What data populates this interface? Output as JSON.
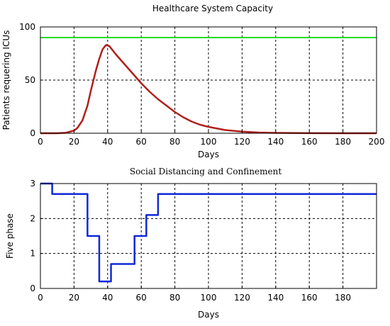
{
  "chart_data": [
    {
      "type": "line",
      "title": "Healthcare System Capacity",
      "xlabel": "Days",
      "ylabel": "Patients requering ICUs",
      "xlim": [
        0,
        200
      ],
      "ylim": [
        0,
        100
      ],
      "xticks": [
        0,
        20,
        40,
        60,
        80,
        100,
        120,
        140,
        160,
        180,
        200
      ],
      "yticks": [
        0,
        50,
        100
      ],
      "grid": true,
      "series": [
        {
          "color": "#22dd22",
          "kind": "hline",
          "y": 90
        },
        {
          "color": "#b0201a",
          "kind": "curve",
          "x": [
            0,
            10,
            15,
            20,
            22,
            25,
            28,
            30,
            33,
            35,
            37,
            39,
            41,
            43,
            45,
            50,
            55,
            60,
            65,
            70,
            75,
            80,
            85,
            90,
            95,
            100,
            110,
            120,
            130,
            140,
            160,
            180,
            200
          ],
          "y": [
            0,
            0,
            0.4,
            2.5,
            5,
            12,
            26,
            40,
            59,
            70,
            79,
            83,
            82,
            78,
            74,
            65,
            56,
            47,
            39,
            32,
            26,
            20,
            15,
            11,
            8,
            6,
            3,
            1.5,
            0.7,
            0.3,
            0.1,
            0,
            0
          ]
        }
      ]
    },
    {
      "type": "line",
      "title": "Social Distancing and Confinement",
      "xlabel": "Days",
      "ylabel": "Five phase",
      "xlim": [
        0,
        200
      ],
      "ylim": [
        0,
        3
      ],
      "xticks": [
        0,
        20,
        40,
        60,
        80,
        100,
        120,
        140,
        160,
        180
      ],
      "yticks": [
        0,
        1,
        2,
        3
      ],
      "grid": true,
      "series": [
        {
          "color": "#1028d8",
          "kind": "step",
          "x": [
            0,
            7,
            7,
            28,
            28,
            35,
            35,
            42,
            42,
            56,
            56,
            63,
            63,
            70,
            70,
            200
          ],
          "y": [
            3,
            3,
            2.7,
            2.7,
            1.5,
            1.5,
            0.2,
            0.2,
            0.7,
            0.7,
            1.5,
            1.5,
            2.1,
            2.1,
            2.7,
            2.7
          ]
        }
      ]
    }
  ]
}
